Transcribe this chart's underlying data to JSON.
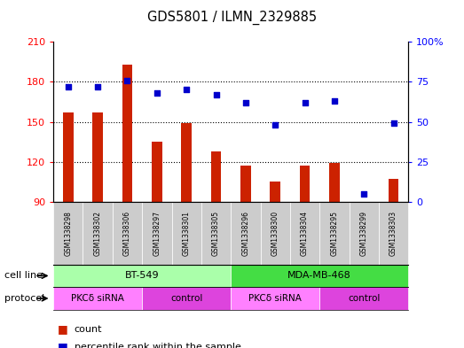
{
  "title": "GDS5801 / ILMN_2329885",
  "samples": [
    "GSM1338298",
    "GSM1338302",
    "GSM1338306",
    "GSM1338297",
    "GSM1338301",
    "GSM1338305",
    "GSM1338296",
    "GSM1338300",
    "GSM1338304",
    "GSM1338295",
    "GSM1338299",
    "GSM1338303"
  ],
  "counts": [
    157,
    157,
    193,
    135,
    149,
    128,
    117,
    105,
    117,
    119,
    90,
    107
  ],
  "percentiles": [
    72,
    72,
    76,
    68,
    70,
    67,
    62,
    48,
    62,
    63,
    5,
    49
  ],
  "ylim_left": [
    90,
    210
  ],
  "ylim_right": [
    0,
    100
  ],
  "yticks_left": [
    90,
    120,
    150,
    180,
    210
  ],
  "yticks_right": [
    0,
    25,
    50,
    75,
    100
  ],
  "ytick_labels_right": [
    "0",
    "25",
    "50",
    "75",
    "100%"
  ],
  "bar_color": "#CC2200",
  "dot_color": "#0000CC",
  "cell_line_groups": [
    {
      "label": "BT-549",
      "start": 0,
      "end": 6,
      "color": "#AAFFAA"
    },
    {
      "label": "MDA-MB-468",
      "start": 6,
      "end": 12,
      "color": "#44DD44"
    }
  ],
  "protocol_groups": [
    {
      "label": "PKCδ siRNA",
      "start": 0,
      "end": 3,
      "color": "#FF80FF"
    },
    {
      "label": "control",
      "start": 3,
      "end": 6,
      "color": "#DD44DD"
    },
    {
      "label": "PKCδ siRNA",
      "start": 6,
      "end": 9,
      "color": "#FF80FF"
    },
    {
      "label": "control",
      "start": 9,
      "end": 12,
      "color": "#DD44DD"
    }
  ],
  "grid_lines": [
    120,
    150,
    180
  ],
  "sample_bg_color": "#CCCCCC",
  "plot_bg": "#FFFFFF"
}
